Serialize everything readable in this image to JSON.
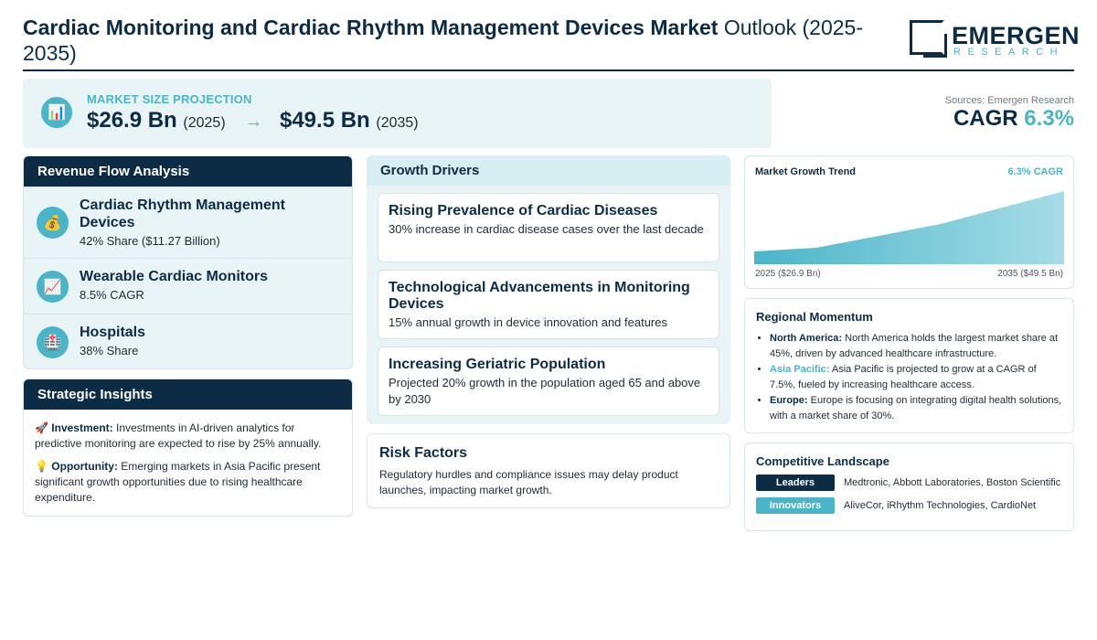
{
  "header": {
    "title_bold": "Cardiac Monitoring and Cardiac Rhythm Management Devices Market",
    "title_light": "Outlook (2025-2035)",
    "logo_word": "EMERGEN",
    "logo_sub": "RESEARCH"
  },
  "projection": {
    "icon": "bar-chart-icon",
    "label": "MARKET SIZE PROJECTION",
    "start_value": "$26.9 Bn",
    "start_year": "(2025)",
    "arrow": "→",
    "end_value": "$49.5 Bn",
    "end_year": "(2035)"
  },
  "summary": {
    "sources": "Sources: Emergen Research",
    "cagr_label": "CAGR",
    "cagr_value": "6.3%"
  },
  "revenue_flow": {
    "heading": "Revenue Flow Analysis",
    "items": [
      {
        "icon": "money-bag-icon",
        "glyph": "💰",
        "title": "Cardiac Rhythm Management Devices",
        "detail": "42% Share ($11.27 Billion)"
      },
      {
        "icon": "trend-chart-icon",
        "glyph": "📈",
        "title": "Wearable Cardiac Monitors",
        "detail": "8.5% CAGR"
      },
      {
        "icon": "hospital-icon",
        "glyph": "🏥",
        "title": "Hospitals",
        "detail": "38% Share"
      }
    ]
  },
  "strategic": {
    "heading": "Strategic Insights",
    "investment_icon": "🚀",
    "investment_label": "Investment:",
    "investment_text": "Investments in AI-driven analytics for predictive monitoring are expected to rise by 25% annually.",
    "opportunity_icon": "💡",
    "opportunity_label": "Opportunity:",
    "opportunity_text": "Emerging markets in Asia Pacific present significant growth opportunities due to rising healthcare expenditure."
  },
  "growth_drivers": {
    "heading": "Growth Drivers",
    "items": [
      {
        "title": "Rising Prevalence of Cardiac Diseases",
        "desc": "30% increase in cardiac disease cases over the last decade"
      },
      {
        "title": "Technological Advancements in Monitoring Devices",
        "desc": "15% annual growth in device innovation and features"
      },
      {
        "title": "Increasing Geriatric Population",
        "desc": "Projected 20% growth in the population aged 65 and above by 2030"
      }
    ]
  },
  "risk": {
    "heading": "Risk Factors",
    "text": "Regulatory hurdles and compliance issues may delay product launches, impacting market growth."
  },
  "trend": {
    "heading": "Market Growth Trend",
    "cagr": "6.3% CAGR",
    "start_label": "2025 ($26.9 Bn)",
    "end_label": "2035 ($49.5 Bn)"
  },
  "chart_data": {
    "type": "area",
    "x": [
      2025,
      2035
    ],
    "values": [
      26.9,
      49.5
    ],
    "title": "Market Growth Trend"
  },
  "region": {
    "heading": "Regional Momentum",
    "items": [
      {
        "label": "North America:",
        "text": "North America holds the largest market share at 45%, driven by advanced healthcare infrastructure."
      },
      {
        "label": "Asia Pacific:",
        "text": "Asia Pacific is projected to grow at a CAGR of 7.5%, fueled by increasing healthcare access."
      },
      {
        "label": "Europe:",
        "text": "Europe is focusing on integrating digital health solutions, with a market share of 30%."
      }
    ]
  },
  "competitive": {
    "heading": "Competitive Landscape",
    "leaders_tag": "Leaders",
    "leaders": "Medtronic, Abbott Laboratories, Boston Scientific",
    "innovators_tag": "Innovators",
    "innovators": "AliveCor, iRhythm Technologies, CardioNet"
  },
  "colors": {
    "navy": "#0c2c46",
    "teal": "#4ab5c9",
    "panel_bg": "#e8f4f6"
  }
}
